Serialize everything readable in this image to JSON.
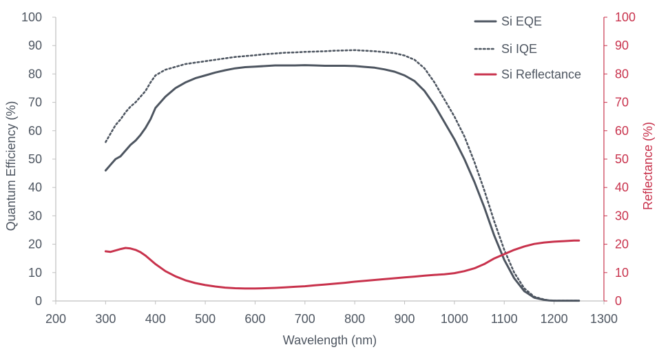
{
  "chart_data": {
    "type": "line",
    "title": "",
    "xlabel": "Wavelength (nm)",
    "ylabel_left": "Quantum Efficiency (%)",
    "ylabel_right": "Reflectance (%)",
    "xlim": [
      200,
      1300
    ],
    "ylim_left": [
      0,
      100
    ],
    "ylim_right": [
      0,
      100
    ],
    "x_ticks": [
      "200",
      "300",
      "400",
      "500",
      "600",
      "700",
      "800",
      "900",
      "1000",
      "1100",
      "1200",
      "1300"
    ],
    "y_ticks_left": [
      "0",
      "10",
      "20",
      "30",
      "40",
      "50",
      "60",
      "70",
      "80",
      "90",
      "100"
    ],
    "y_ticks_right": [
      "0",
      "10",
      "20",
      "30",
      "40",
      "50",
      "60",
      "70",
      "80",
      "90",
      "100"
    ],
    "grid": false,
    "legend_position": "top-right",
    "colors": {
      "eqe": "#4d5560",
      "iqe": "#4d5560",
      "reflectance": "#c8324c",
      "left_axis": "#4d5560",
      "right_axis": "#c8324c",
      "axis_line": "#bfbfbf"
    },
    "series": [
      {
        "name": "Si EQE",
        "axis": "left",
        "style": "solid",
        "x": [
          300,
          310,
          320,
          330,
          340,
          350,
          360,
          370,
          380,
          390,
          400,
          420,
          440,
          460,
          480,
          500,
          520,
          540,
          560,
          580,
          600,
          620,
          640,
          660,
          680,
          700,
          720,
          740,
          760,
          780,
          800,
          820,
          840,
          860,
          880,
          900,
          920,
          940,
          960,
          980,
          1000,
          1020,
          1040,
          1060,
          1080,
          1100,
          1120,
          1140,
          1160,
          1180,
          1190,
          1200,
          1220,
          1240,
          1250
        ],
        "y": [
          46,
          48,
          50,
          51,
          53,
          55,
          56.5,
          58.5,
          61,
          64,
          68,
          72,
          75,
          77,
          78.5,
          79.5,
          80.5,
          81.3,
          82,
          82.4,
          82.6,
          82.8,
          83,
          83,
          83,
          83.1,
          83,
          82.9,
          82.9,
          82.9,
          82.8,
          82.5,
          82.2,
          81.6,
          80.8,
          79.5,
          77.5,
          74,
          69,
          63,
          57,
          50,
          42,
          33,
          23,
          14.5,
          8,
          3.5,
          1.2,
          0.4,
          0.2,
          0.1,
          0.1,
          0.1,
          0.1
        ]
      },
      {
        "name": "Si IQE",
        "axis": "left",
        "style": "dotted",
        "x": [
          300,
          310,
          320,
          330,
          340,
          350,
          360,
          370,
          380,
          390,
          400,
          420,
          440,
          460,
          480,
          500,
          520,
          540,
          560,
          580,
          600,
          620,
          640,
          660,
          680,
          700,
          720,
          740,
          760,
          780,
          800,
          820,
          840,
          860,
          880,
          900,
          920,
          940,
          960,
          980,
          1000,
          1020,
          1040,
          1060,
          1080,
          1100,
          1120,
          1140,
          1160,
          1180,
          1190,
          1200,
          1220,
          1240,
          1250
        ],
        "y": [
          56,
          59,
          62,
          64,
          66.5,
          68.5,
          70,
          72,
          74,
          77,
          79.5,
          81.5,
          82.5,
          83.5,
          84,
          84.5,
          85,
          85.5,
          86,
          86.3,
          86.6,
          87,
          87.2,
          87.5,
          87.6,
          87.8,
          87.9,
          88,
          88.2,
          88.3,
          88.4,
          88.2,
          88,
          87.7,
          87.3,
          86.5,
          85,
          82,
          77,
          71,
          65,
          58,
          49,
          39,
          28,
          18,
          10,
          4.5,
          1.5,
          0.5,
          0.2,
          0.1,
          0.1,
          0.1,
          0.1
        ]
      },
      {
        "name": "Si Reflectance",
        "axis": "right",
        "style": "solid",
        "x": [
          300,
          310,
          320,
          330,
          340,
          350,
          360,
          370,
          380,
          390,
          400,
          420,
          440,
          460,
          480,
          500,
          520,
          540,
          560,
          580,
          600,
          620,
          640,
          660,
          680,
          700,
          720,
          740,
          760,
          780,
          800,
          820,
          840,
          860,
          880,
          900,
          920,
          940,
          960,
          980,
          1000,
          1020,
          1040,
          1060,
          1080,
          1100,
          1120,
          1140,
          1160,
          1180,
          1200,
          1220,
          1240,
          1250
        ],
        "y": [
          17.5,
          17.3,
          17.8,
          18.3,
          18.7,
          18.5,
          18,
          17.2,
          16,
          14.5,
          13,
          10.5,
          8.7,
          7.3,
          6.3,
          5.6,
          5.1,
          4.7,
          4.5,
          4.4,
          4.4,
          4.5,
          4.6,
          4.8,
          5,
          5.2,
          5.5,
          5.8,
          6.1,
          6.4,
          6.8,
          7.1,
          7.4,
          7.7,
          8,
          8.3,
          8.6,
          8.9,
          9.2,
          9.4,
          9.8,
          10.5,
          11.5,
          13,
          15,
          16.5,
          18,
          19.2,
          20.1,
          20.6,
          20.9,
          21.1,
          21.3,
          21.3
        ]
      }
    ]
  }
}
